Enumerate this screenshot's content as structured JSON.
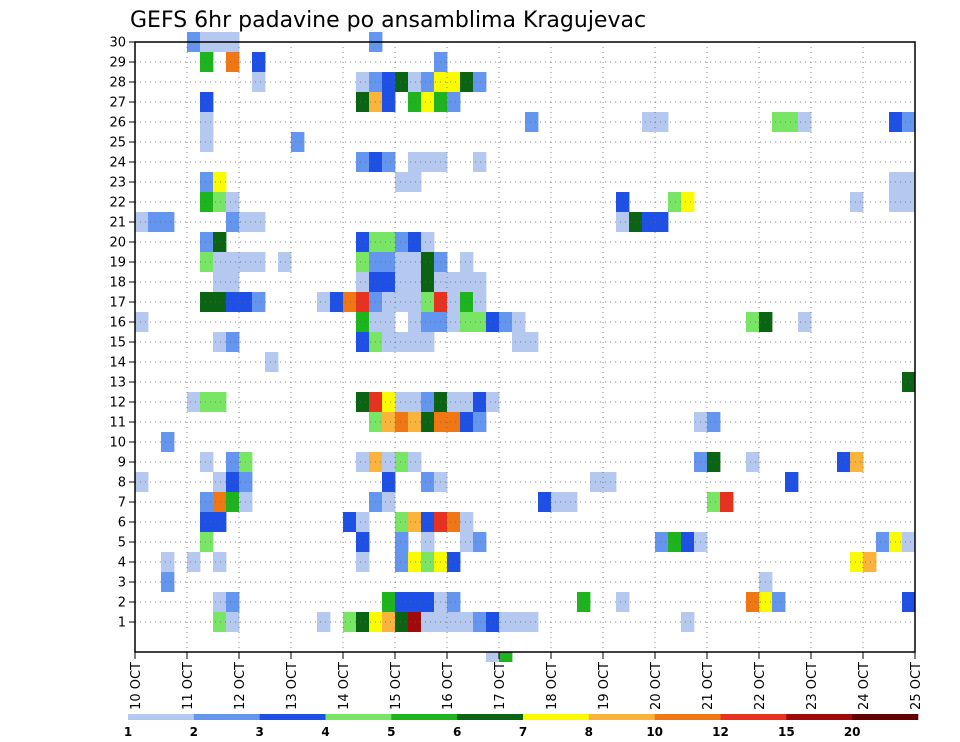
{
  "chart_data": {
    "type": "heatmap",
    "title": "GEFS 6hr padavine po ansamblima Kragujevac",
    "xlabel": "",
    "ylabel": "",
    "x_ticks": [
      "10 OCT",
      "11 OCT",
      "12 OCT",
      "13 OCT",
      "14 OCT",
      "15 OCT",
      "16 OCT",
      "17 OCT",
      "18 OCT",
      "19 OCT",
      "20 OCT",
      "21 OCT",
      "22 OCT",
      "23 OCT",
      "24 OCT",
      "25 OCT"
    ],
    "y_ticks": [
      "1",
      "2",
      "3",
      "4",
      "5",
      "6",
      "7",
      "8",
      "9",
      "10",
      "11",
      "12",
      "13",
      "14",
      "15",
      "16",
      "17",
      "18",
      "19",
      "20",
      "21",
      "22",
      "23",
      "24",
      "25",
      "26",
      "27",
      "28",
      "29",
      "30"
    ],
    "xlim_days": [
      10,
      25
    ],
    "ylim_members": [
      0,
      30
    ],
    "time_step_hours": 6,
    "grid": "dotted",
    "colorbar": {
      "labels": [
        "1",
        "2",
        "3",
        "4",
        "5",
        "6",
        "7",
        "8",
        "10",
        "12",
        "15",
        "20"
      ],
      "colors": [
        "#b4c8f0",
        "#6496f0",
        "#1e50e6",
        "#78e664",
        "#1eb41e",
        "#0a6414",
        "#fafa00",
        "#fab43c",
        "#f07814",
        "#e6321e",
        "#a00a0a",
        "#640000"
      ]
    },
    "cells": [
      {
        "m": 30,
        "c": [
          [
            11.0,
            2
          ],
          [
            11.25,
            1
          ],
          [
            11.5,
            1
          ],
          [
            11.75,
            1
          ],
          [
            14.5,
            2
          ]
        ]
      },
      {
        "m": 29,
        "c": [
          [
            11.25,
            5
          ],
          [
            11.75,
            9
          ],
          [
            12.25,
            3
          ],
          [
            15.75,
            2
          ]
        ]
      },
      {
        "m": 28,
        "c": [
          [
            14.25,
            1
          ],
          [
            14.5,
            2
          ],
          [
            14.75,
            3
          ],
          [
            15.0,
            6
          ],
          [
            15.25,
            1
          ],
          [
            15.5,
            2
          ],
          [
            15.75,
            7
          ],
          [
            16.0,
            7
          ],
          [
            16.25,
            6
          ],
          [
            16.5,
            2
          ],
          [
            12.25,
            1
          ]
        ]
      },
      {
        "m": 27,
        "c": [
          [
            11.25,
            3
          ],
          [
            14.25,
            6
          ],
          [
            14.5,
            8
          ],
          [
            14.75,
            3
          ],
          [
            15.25,
            5
          ],
          [
            15.5,
            7
          ],
          [
            15.75,
            5
          ],
          [
            16.0,
            2
          ]
        ]
      },
      {
        "m": 26,
        "c": [
          [
            11.25,
            1
          ],
          [
            17.5,
            2
          ],
          [
            19.75,
            1
          ],
          [
            20.0,
            1
          ],
          [
            22.25,
            4
          ],
          [
            22.5,
            4
          ],
          [
            22.75,
            1
          ],
          [
            24.5,
            3
          ],
          [
            24.75,
            2
          ]
        ]
      },
      {
        "m": 25,
        "c": [
          [
            11.25,
            1
          ],
          [
            13.0,
            2
          ]
        ]
      },
      {
        "m": 24,
        "c": [
          [
            14.25,
            2
          ],
          [
            14.5,
            3
          ],
          [
            14.75,
            2
          ],
          [
            15.25,
            1
          ],
          [
            15.5,
            1
          ],
          [
            15.75,
            1
          ],
          [
            16.5,
            1
          ]
        ]
      },
      {
        "m": 23,
        "c": [
          [
            11.25,
            2
          ],
          [
            11.5,
            7
          ],
          [
            15.0,
            1
          ],
          [
            15.25,
            1
          ],
          [
            24.5,
            1
          ],
          [
            24.75,
            1
          ]
        ]
      },
      {
        "m": 22,
        "c": [
          [
            11.25,
            5
          ],
          [
            11.5,
            4
          ],
          [
            11.75,
            1
          ],
          [
            19.25,
            3
          ],
          [
            20.25,
            4
          ],
          [
            20.5,
            7
          ],
          [
            23.75,
            1
          ],
          [
            24.5,
            1
          ],
          [
            24.75,
            1
          ]
        ]
      },
      {
        "m": 21,
        "c": [
          [
            10.0,
            1
          ],
          [
            10.25,
            2
          ],
          [
            10.5,
            2
          ],
          [
            11.75,
            2
          ],
          [
            12.0,
            1
          ],
          [
            12.25,
            1
          ],
          [
            19.25,
            1
          ],
          [
            19.5,
            6
          ],
          [
            19.75,
            3
          ],
          [
            20.0,
            3
          ]
        ]
      },
      {
        "m": 20,
        "c": [
          [
            11.25,
            2
          ],
          [
            11.5,
            6
          ],
          [
            14.25,
            3
          ],
          [
            14.5,
            4
          ],
          [
            14.75,
            4
          ],
          [
            15.0,
            2
          ],
          [
            15.25,
            3
          ],
          [
            15.5,
            1
          ]
        ]
      },
      {
        "m": 19,
        "c": [
          [
            11.25,
            4
          ],
          [
            11.5,
            1
          ],
          [
            11.75,
            1
          ],
          [
            12.0,
            1
          ],
          [
            12.25,
            1
          ],
          [
            12.75,
            1
          ],
          [
            14.25,
            4
          ],
          [
            14.5,
            2
          ],
          [
            14.75,
            2
          ],
          [
            15.0,
            1
          ],
          [
            15.25,
            1
          ],
          [
            15.5,
            6
          ],
          [
            15.75,
            2
          ],
          [
            16.25,
            1
          ]
        ]
      },
      {
        "m": 18,
        "c": [
          [
            11.5,
            1
          ],
          [
            11.75,
            1
          ],
          [
            14.25,
            1
          ],
          [
            14.5,
            3
          ],
          [
            14.75,
            3
          ],
          [
            15.0,
            1
          ],
          [
            15.25,
            1
          ],
          [
            15.5,
            6
          ],
          [
            15.75,
            1
          ],
          [
            16.0,
            1
          ],
          [
            16.25,
            1
          ],
          [
            16.5,
            1
          ]
        ]
      },
      {
        "m": 17,
        "c": [
          [
            11.25,
            6
          ],
          [
            11.5,
            6
          ],
          [
            11.75,
            3
          ],
          [
            12.0,
            3
          ],
          [
            12.25,
            2
          ],
          [
            13.5,
            1
          ],
          [
            13.75,
            3
          ],
          [
            14.0,
            9
          ],
          [
            14.25,
            10
          ],
          [
            14.5,
            2
          ],
          [
            14.75,
            1
          ],
          [
            15.0,
            1
          ],
          [
            15.25,
            1
          ],
          [
            15.5,
            4
          ],
          [
            15.75,
            10
          ],
          [
            16.0,
            1
          ],
          [
            16.25,
            5
          ],
          [
            16.5,
            1
          ]
        ]
      },
      {
        "m": 16,
        "c": [
          [
            10.0,
            1
          ],
          [
            14.25,
            5
          ],
          [
            14.5,
            1
          ],
          [
            14.75,
            1
          ],
          [
            15.25,
            1
          ],
          [
            15.5,
            2
          ],
          [
            15.75,
            2
          ],
          [
            16.0,
            1
          ],
          [
            16.25,
            4
          ],
          [
            16.5,
            4
          ],
          [
            16.75,
            3
          ],
          [
            17.0,
            2
          ],
          [
            17.25,
            1
          ],
          [
            21.75,
            4
          ],
          [
            22.0,
            6
          ],
          [
            22.75,
            1
          ]
        ]
      },
      {
        "m": 15,
        "c": [
          [
            14.25,
            3
          ],
          [
            14.5,
            4
          ],
          [
            14.75,
            1
          ],
          [
            15.0,
            1
          ],
          [
            15.25,
            1
          ],
          [
            15.5,
            1
          ],
          [
            11.5,
            1
          ],
          [
            11.75,
            2
          ],
          [
            17.25,
            1
          ],
          [
            17.5,
            1
          ]
        ]
      },
      {
        "m": 14,
        "c": [
          [
            12.5,
            1
          ]
        ]
      },
      {
        "m": 13,
        "c": [
          [
            24.75,
            6
          ]
        ]
      },
      {
        "m": 12,
        "c": [
          [
            11.0,
            1
          ],
          [
            11.25,
            4
          ],
          [
            11.5,
            4
          ],
          [
            14.25,
            6
          ],
          [
            14.5,
            10
          ],
          [
            14.75,
            7
          ],
          [
            15.0,
            1
          ],
          [
            15.25,
            1
          ],
          [
            15.5,
            2
          ],
          [
            15.75,
            6
          ],
          [
            16.0,
            1
          ],
          [
            16.25,
            1
          ],
          [
            16.5,
            3
          ],
          [
            16.75,
            1
          ]
        ]
      },
      {
        "m": 11,
        "c": [
          [
            14.5,
            4
          ],
          [
            14.75,
            8
          ],
          [
            15.0,
            9
          ],
          [
            15.25,
            8
          ],
          [
            15.5,
            6
          ],
          [
            15.75,
            9
          ],
          [
            16.0,
            9
          ],
          [
            16.25,
            3
          ],
          [
            16.5,
            2
          ],
          [
            20.75,
            1
          ],
          [
            21.0,
            2
          ]
        ]
      },
      {
        "m": 10,
        "c": [
          [
            10.5,
            2
          ]
        ]
      },
      {
        "m": 9,
        "c": [
          [
            11.25,
            1
          ],
          [
            11.75,
            2
          ],
          [
            12.0,
            4
          ],
          [
            14.25,
            1
          ],
          [
            14.5,
            8
          ],
          [
            14.75,
            1
          ],
          [
            15.0,
            4
          ],
          [
            15.25,
            1
          ],
          [
            20.75,
            2
          ],
          [
            21.0,
            6
          ],
          [
            21.75,
            1
          ],
          [
            23.5,
            3
          ],
          [
            23.75,
            8
          ]
        ]
      },
      {
        "m": 8,
        "c": [
          [
            10.0,
            1
          ],
          [
            11.5,
            1
          ],
          [
            11.75,
            3
          ],
          [
            12.0,
            2
          ],
          [
            14.75,
            3
          ],
          [
            15.5,
            2
          ],
          [
            15.75,
            1
          ],
          [
            18.75,
            1
          ],
          [
            19.0,
            1
          ],
          [
            22.5,
            3
          ]
        ]
      },
      {
        "m": 7,
        "c": [
          [
            11.25,
            2
          ],
          [
            11.5,
            9
          ],
          [
            11.75,
            5
          ],
          [
            12.0,
            1
          ],
          [
            14.5,
            2
          ],
          [
            14.75,
            1
          ],
          [
            17.75,
            3
          ],
          [
            18.0,
            1
          ],
          [
            18.25,
            1
          ],
          [
            21.0,
            4
          ],
          [
            21.25,
            10
          ]
        ]
      },
      {
        "m": 6,
        "c": [
          [
            11.25,
            3
          ],
          [
            11.5,
            3
          ],
          [
            14.0,
            3
          ],
          [
            14.25,
            1
          ],
          [
            15.0,
            4
          ],
          [
            15.25,
            8
          ],
          [
            15.5,
            3
          ],
          [
            15.75,
            10
          ],
          [
            16.0,
            9
          ],
          [
            16.25,
            1
          ]
        ]
      },
      {
        "m": 5,
        "c": [
          [
            11.25,
            4
          ],
          [
            14.25,
            3
          ],
          [
            15.0,
            2
          ],
          [
            15.5,
            1
          ],
          [
            16.25,
            1
          ],
          [
            16.5,
            2
          ],
          [
            20.0,
            2
          ],
          [
            20.25,
            5
          ],
          [
            20.5,
            3
          ],
          [
            20.75,
            1
          ],
          [
            24.25,
            2
          ],
          [
            24.5,
            7
          ],
          [
            24.75,
            1
          ]
        ]
      },
      {
        "m": 4,
        "c": [
          [
            10.5,
            1
          ],
          [
            11.0,
            1
          ],
          [
            11.5,
            1
          ],
          [
            14.25,
            1
          ],
          [
            15.0,
            2
          ],
          [
            15.25,
            7
          ],
          [
            15.5,
            4
          ],
          [
            15.75,
            7
          ],
          [
            16.0,
            3
          ],
          [
            23.75,
            7
          ],
          [
            24.0,
            8
          ]
        ]
      },
      {
        "m": 3,
        "c": [
          [
            10.5,
            2
          ],
          [
            22.0,
            1
          ]
        ]
      },
      {
        "m": 2,
        "c": [
          [
            11.5,
            1
          ],
          [
            11.75,
            2
          ],
          [
            14.75,
            5
          ],
          [
            15.0,
            3
          ],
          [
            15.25,
            3
          ],
          [
            15.5,
            3
          ],
          [
            15.75,
            1
          ],
          [
            16.0,
            2
          ],
          [
            18.5,
            5
          ],
          [
            19.25,
            1
          ],
          [
            21.75,
            9
          ],
          [
            22.0,
            7
          ],
          [
            22.25,
            2
          ],
          [
            24.75,
            3
          ]
        ]
      },
      {
        "m": 1,
        "c": [
          [
            11.5,
            4
          ],
          [
            11.75,
            1
          ],
          [
            13.5,
            1
          ],
          [
            14.0,
            4
          ],
          [
            14.25,
            6
          ],
          [
            14.5,
            7
          ],
          [
            14.75,
            8
          ],
          [
            15.0,
            6
          ],
          [
            15.25,
            11
          ],
          [
            15.5,
            1
          ],
          [
            15.75,
            1
          ],
          [
            16.0,
            1
          ],
          [
            16.25,
            1
          ],
          [
            16.5,
            2
          ],
          [
            16.75,
            3
          ],
          [
            17.0,
            1
          ],
          [
            17.25,
            1
          ],
          [
            17.5,
            1
          ],
          [
            20.5,
            1
          ]
        ]
      },
      {
        "m": 0,
        "c": [
          [
            16.75,
            1
          ],
          [
            17.0,
            5
          ]
        ]
      }
    ]
  }
}
